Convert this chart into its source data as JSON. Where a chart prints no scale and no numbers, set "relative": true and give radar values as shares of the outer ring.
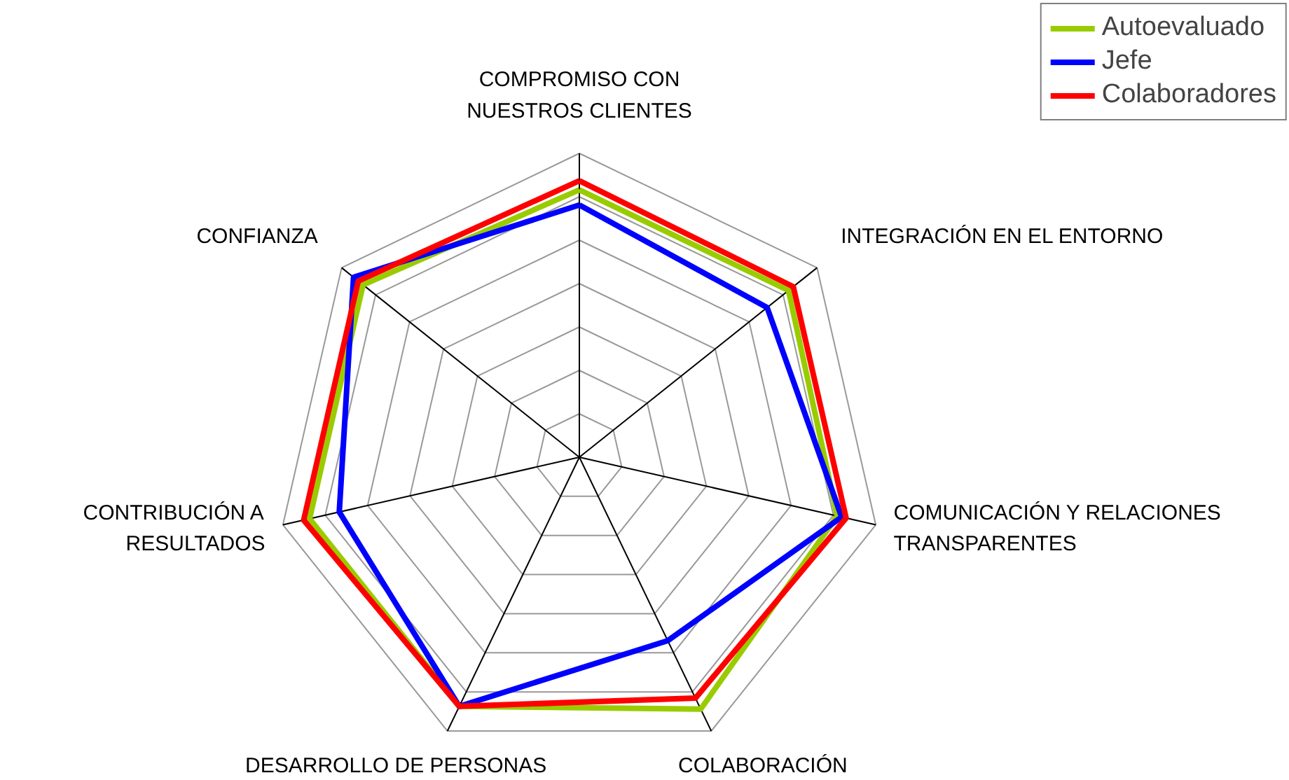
{
  "chart_data": {
    "type": "radar",
    "relative": true,
    "grid": true,
    "legend": "top right",
    "line_style": "solid",
    "marker": "none",
    "categories": [
      "COMPROMISO CON\nNUESTROS CLIENTES",
      "INTEGRACIÓN EN EL ENTORNO",
      "COMUNICACIÓN Y RELACIONES\nTRANSPARENTES",
      "COLABORACIÓN",
      "DESARROLLO DE PERSONAS",
      "CONTRIBUCIÓN A\nRESULTADOS",
      "CONFIANZA"
    ],
    "series": [
      {
        "name": "Autoevaluado",
        "color": "#99cc00",
        "values": [
          0.88,
          0.88,
          0.87,
          0.92,
          0.91,
          0.91,
          0.91
        ]
      },
      {
        "name": "Jefe",
        "color": "#0000ff",
        "values": [
          0.83,
          0.79,
          0.885,
          0.67,
          0.91,
          0.81,
          0.95
        ]
      },
      {
        "name": "Colaboradores",
        "color": "#ff0000",
        "values": [
          0.91,
          0.9,
          0.9,
          0.88,
          0.91,
          0.93,
          0.93
        ]
      }
    ]
  }
}
